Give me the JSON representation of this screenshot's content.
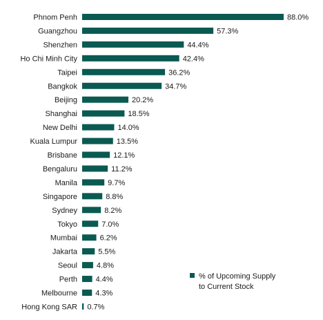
{
  "chart_data": {
    "type": "bar",
    "orientation": "horizontal",
    "categories": [
      "Phnom Penh",
      "Guangzhou",
      "Shenzhen",
      "Ho Chi Minh City",
      "Taipei",
      "Bangkok",
      "Beijing",
      "Shanghai",
      "New Delhi",
      "Kuala Lumpur",
      "Brisbane",
      "Bengaluru",
      "Manila",
      "Singapore",
      "Sydney",
      "Tokyo",
      "Mumbai",
      "Jakarta",
      "Seoul",
      "Perth",
      "Melbourne",
      "Hong Kong SAR"
    ],
    "values": [
      88.0,
      57.3,
      44.4,
      42.4,
      36.2,
      34.7,
      20.2,
      18.5,
      14.0,
      13.5,
      12.1,
      11.2,
      9.7,
      8.8,
      8.2,
      7.0,
      6.2,
      5.5,
      4.8,
      4.4,
      4.3,
      0.7
    ],
    "value_labels": [
      "88.0%",
      "57.3%",
      "44.4%",
      "42.4%",
      "36.2%",
      "34.7%",
      "20.2%",
      "18.5%",
      "14.0%",
      "13.5%",
      "12.1%",
      "11.2%",
      "9.7%",
      "8.8%",
      "8.2%",
      "7.0%",
      "6.2%",
      "5.5%",
      "4.8%",
      "4.4%",
      "4.3%",
      "0.7%"
    ],
    "series": [
      {
        "name_lines": [
          "% of Upcoming Supply",
          "to Current Stock"
        ],
        "color": "#0a5a52"
      }
    ],
    "xlim": [
      0,
      88
    ],
    "grid": false,
    "legend_position": "bottom-right"
  }
}
